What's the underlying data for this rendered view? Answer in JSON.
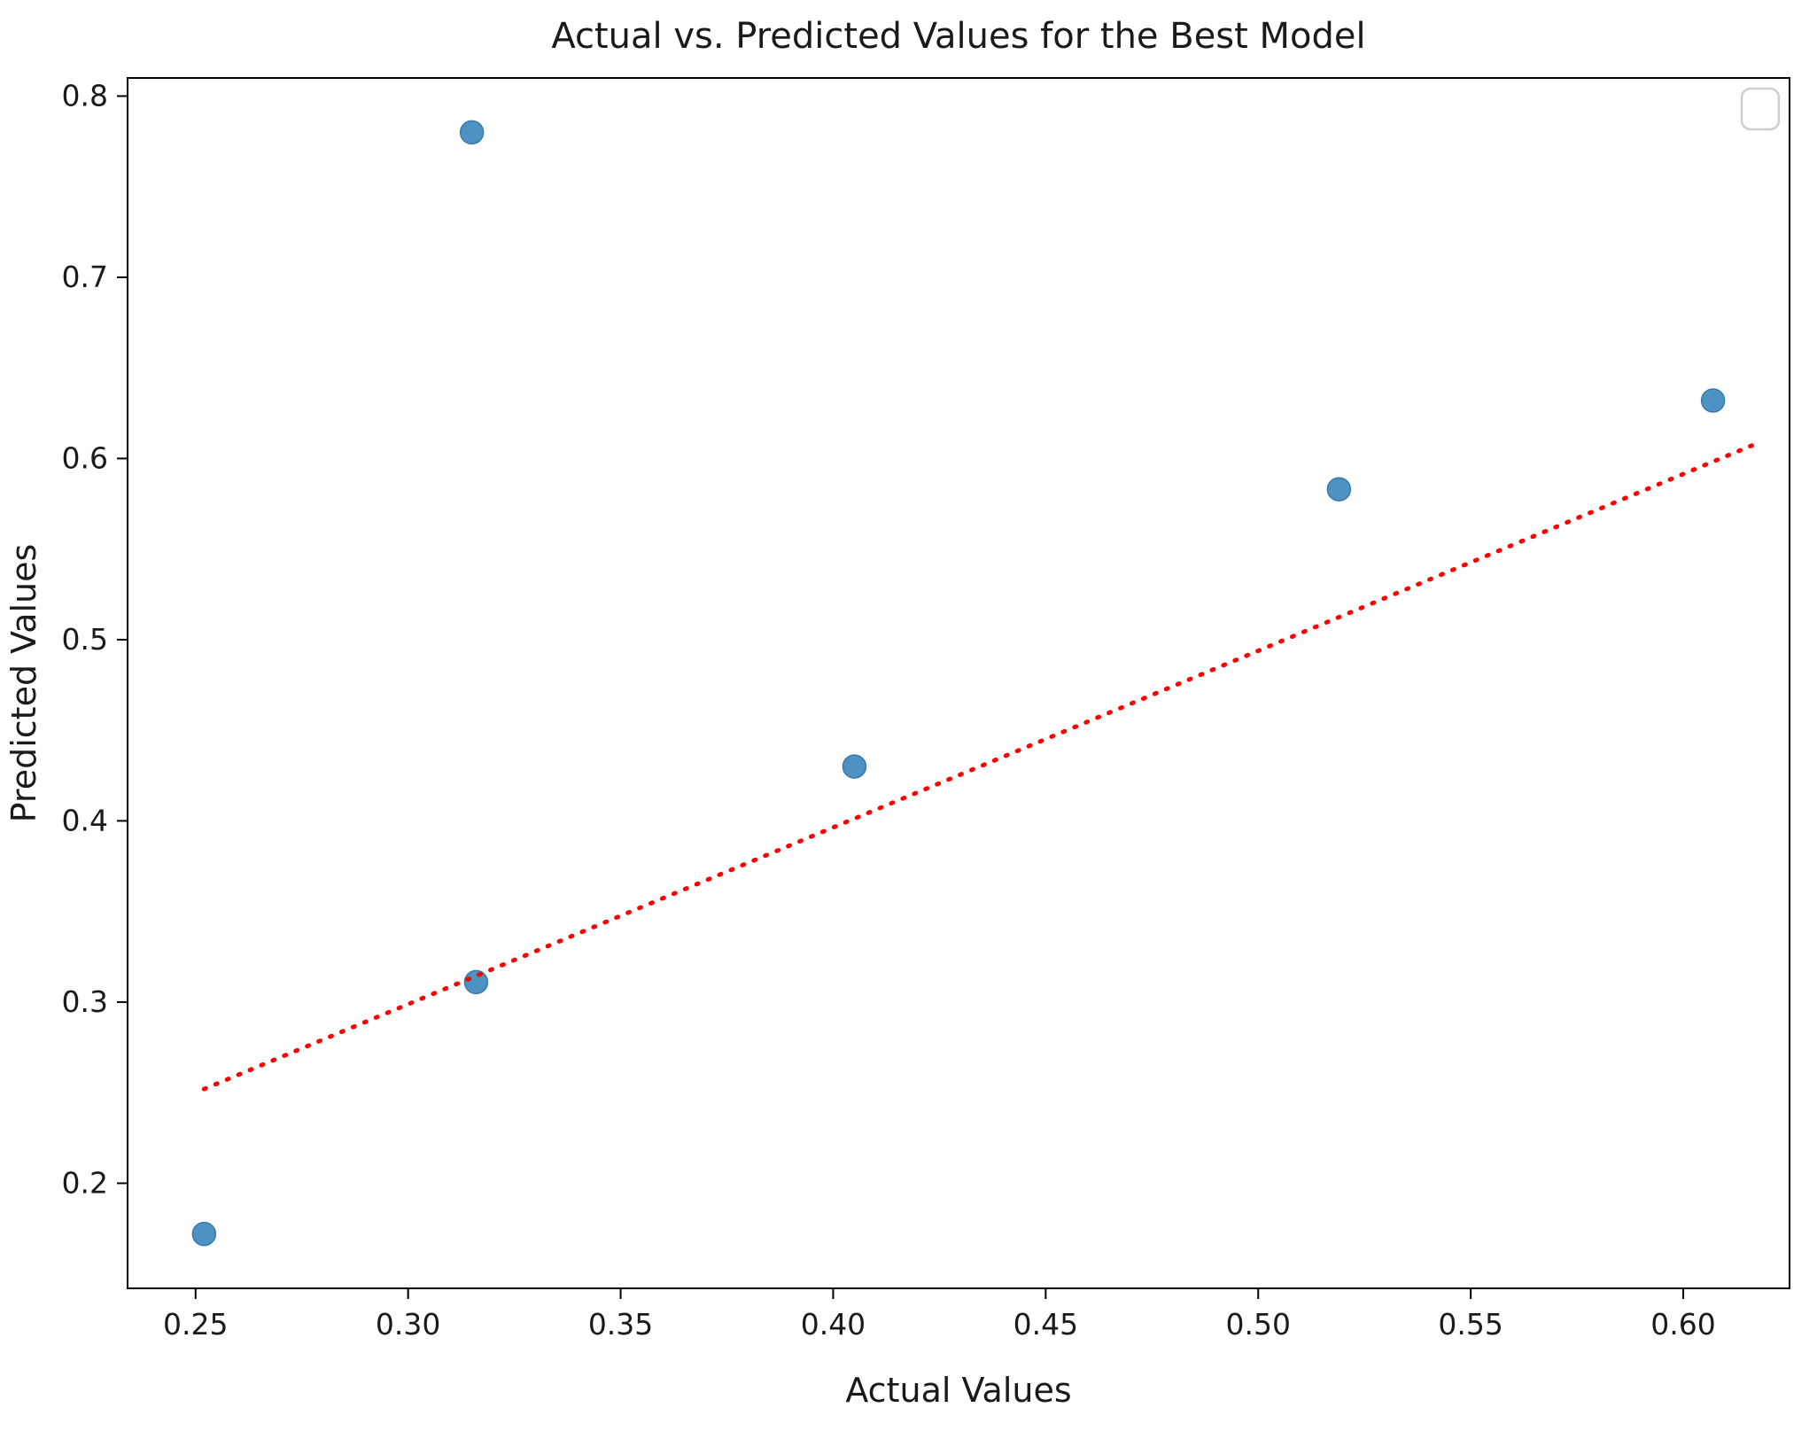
{
  "chart_data": {
    "type": "scatter",
    "title": "Actual vs. Predicted Values for the Best Model",
    "xlabel": "Actual Values",
    "ylabel": "Predicted Values",
    "xlim": [
      0.234,
      0.625
    ],
    "ylim": [
      0.142,
      0.81
    ],
    "grid": false,
    "legend_position": "upper right",
    "legend_entries": [],
    "x_tick_values": [
      0.25,
      0.3,
      0.35,
      0.4,
      0.45,
      0.5,
      0.55,
      0.6
    ],
    "x_tick_labels": [
      "0.25",
      "0.30",
      "0.35",
      "0.40",
      "0.45",
      "0.50",
      "0.55",
      "0.60"
    ],
    "y_tick_values": [
      0.2,
      0.3,
      0.4,
      0.5,
      0.6,
      0.7,
      0.8
    ],
    "y_tick_labels": [
      "0.2",
      "0.3",
      "0.4",
      "0.5",
      "0.6",
      "0.7",
      "0.8"
    ],
    "series": [
      {
        "name": "predicted-vs-actual-points",
        "marker_color": "#4C92C3",
        "marker_edge_color": "#3B78A6",
        "points": [
          {
            "x": 0.252,
            "y": 0.172
          },
          {
            "x": 0.315,
            "y": 0.78
          },
          {
            "x": 0.316,
            "y": 0.311
          },
          {
            "x": 0.405,
            "y": 0.43
          },
          {
            "x": 0.519,
            "y": 0.583
          },
          {
            "x": 0.607,
            "y": 0.632
          }
        ]
      }
    ],
    "ref_line": {
      "x1": 0.252,
      "y1": 0.252,
      "x2": 0.617,
      "y2": 0.608,
      "color": "#ff0000",
      "style": "dotted"
    },
    "colors": {
      "spine": "#000000",
      "tick": "#000000",
      "legend_border": "#cccccc",
      "background": "#ffffff"
    }
  }
}
